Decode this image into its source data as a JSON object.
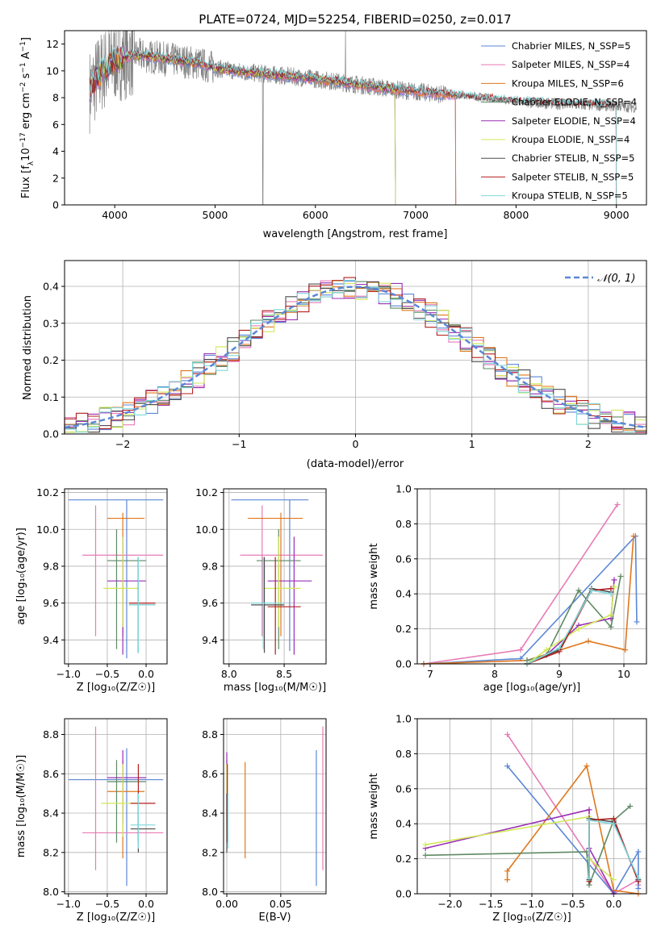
{
  "colors": {
    "Chabrier MILES": "#5b87d6",
    "Salpeter MILES": "#e87bb6",
    "Kroupa MILES": "#e0771d",
    "Chabrier ELODIE": "#5f8a64",
    "Salpeter ELODIE": "#9b2fb5",
    "Kroupa ELODIE": "#d2e85a",
    "Chabrier STELIB": "#4d4d4d",
    "Salpeter STELIB": "#b41f1f",
    "Kroupa STELIB": "#7fd8dc",
    "data": "#808080"
  },
  "chart_data": [
    {
      "id": "spectrum",
      "type": "line",
      "title": "PLATE=0724, MJD=52254, FIBERID=0250, z=0.017",
      "xlabel": "wavelength [Angstrom, rest frame]",
      "ylabel": "Flux [f_λ10^{-17} erg cm^{-2} s^{-1} A^{-1}]",
      "xlim": [
        3500,
        9300
      ],
      "ylim": [
        0,
        13
      ],
      "xticks": [
        "4000",
        "5000",
        "6000",
        "7000",
        "8000",
        "9000"
      ],
      "yticks": [
        "0",
        "2",
        "4",
        "6",
        "8",
        "10",
        "12"
      ],
      "legend": [
        {
          "name": "Chabrier MILES",
          "nssp": "N_SSP=5"
        },
        {
          "name": "Salpeter MILES",
          "nssp": "N_SSP=4"
        },
        {
          "name": "Kroupa MILES",
          "nssp": "N_SSP=6"
        },
        {
          "name": "Chabrier ELODIE",
          "nssp": "N_SSP=4"
        },
        {
          "name": "Salpeter ELODIE",
          "nssp": "N_SSP=4"
        },
        {
          "name": "Kroupa ELODIE",
          "nssp": "N_SSP=4"
        },
        {
          "name": "Chabrier STELIB",
          "nssp": "N_SSP=5"
        },
        {
          "name": "Salpeter STELIB",
          "nssp": "N_SSP=5"
        },
        {
          "name": "Kroupa STELIB",
          "nssp": "N_SSP=5"
        }
      ],
      "legend_position": "upper right",
      "continuum": [
        [
          3750,
          8.5
        ],
        [
          3850,
          9.8
        ],
        [
          4000,
          10.8
        ],
        [
          4200,
          11.2
        ],
        [
          4500,
          10.9
        ],
        [
          4800,
          10.6
        ],
        [
          5000,
          10.2
        ],
        [
          5300,
          9.9
        ],
        [
          5600,
          9.7
        ],
        [
          6000,
          9.4
        ],
        [
          6400,
          9.0
        ],
        [
          6800,
          8.6
        ],
        [
          7200,
          8.3
        ],
        [
          7600,
          8.0
        ],
        [
          8000,
          7.7
        ],
        [
          8500,
          7.5
        ],
        [
          9000,
          7.4
        ],
        [
          9200,
          7.3
        ]
      ],
      "data_range": [
        3750,
        9200
      ],
      "model_ranges": {
        "Chabrier MILES": [
          3750,
          7400
        ],
        "Salpeter MILES": [
          3750,
          7400
        ],
        "Kroupa MILES": [
          3750,
          7400
        ],
        "Chabrier ELODIE": [
          3750,
          6800
        ],
        "Salpeter ELODIE": [
          3750,
          6800
        ],
        "Kroupa ELODIE": [
          3750,
          6800
        ],
        "Chabrier STELIB": [
          3750,
          9000
        ],
        "Salpeter STELIB": [
          3750,
          9000
        ],
        "Kroupa STELIB": [
          3750,
          9000
        ]
      }
    },
    {
      "id": "residual-histogram",
      "type": "bar",
      "xlabel": "(data-model)/error",
      "ylabel": "Normed distribution",
      "xlim": [
        -2.5,
        2.5
      ],
      "ylim": [
        0,
        0.47
      ],
      "xticks": [
        "−2",
        "−1",
        "0",
        "1",
        "2"
      ],
      "yticks": [
        "0.0",
        "0.1",
        "0.2",
        "0.3",
        "0.4"
      ],
      "legend": "𝒩(0, 1)",
      "legend_position": "upper right",
      "bin_width": 0.1,
      "bin_start": -2.5,
      "series_models": [
        "Chabrier MILES",
        "Salpeter MILES",
        "Kroupa MILES",
        "Chabrier ELODIE",
        "Salpeter ELODIE",
        "Kroupa ELODIE",
        "Chabrier STELIB",
        "Salpeter STELIB",
        "Kroupa STELIB"
      ]
    },
    {
      "id": "age-vs-Z",
      "type": "scatter",
      "xlabel": "Z [log₁₀(Z/Z☉)]",
      "ylabel": "age  [log₁₀(age/yr)]",
      "xlim": [
        -1.05,
        0.27
      ],
      "ylim": [
        9.27,
        10.22
      ],
      "xticks": [
        "−1.0",
        "−0.5",
        "0.0"
      ],
      "yticks": [
        "9.4",
        "9.6",
        "9.8",
        "10.0",
        "10.2"
      ],
      "points": [
        {
          "m": "Chabrier MILES",
          "x": [
            -1.0,
            0.22
          ],
          "xc": -0.25,
          "y": [
            9.3,
            10.16
          ],
          "yc": 10.16
        },
        {
          "m": "Salpeter MILES",
          "x": [
            -0.82,
            0.22
          ],
          "xc": -0.65,
          "y": [
            9.42,
            10.13
          ],
          "yc": 9.86
        },
        {
          "m": "Kroupa MILES",
          "x": [
            -0.5,
            -0.02
          ],
          "xc": -0.3,
          "y": [
            9.42,
            10.09
          ],
          "yc": 10.06
        },
        {
          "m": "Chabrier ELODIE",
          "x": [
            -0.5,
            0.0
          ],
          "xc": -0.38,
          "y": [
            9.35,
            10.0
          ],
          "yc": 9.83
        },
        {
          "m": "Salpeter ELODIE",
          "x": [
            -0.5,
            -0.0
          ],
          "xc": -0.3,
          "y": [
            9.32,
            9.96
          ],
          "yc": 9.72
        },
        {
          "m": "Kroupa ELODIE",
          "x": [
            -0.55,
            -0.1
          ],
          "xc": -0.3,
          "y": [
            9.47,
            9.96
          ],
          "yc": 9.68
        },
        {
          "m": "Chabrier STELIB",
          "x": [
            -0.22,
            0.12
          ],
          "xc": -0.1,
          "y": [
            9.33,
            9.85
          ],
          "yc": 9.59
        },
        {
          "m": "Salpeter STELIB",
          "x": [
            -0.22,
            0.12
          ],
          "xc": -0.1,
          "y": [
            9.33,
            9.85
          ],
          "yc": 9.6
        },
        {
          "m": "Kroupa STELIB",
          "x": [
            -0.22,
            0.12
          ],
          "xc": -0.1,
          "y": [
            9.33,
            9.85
          ],
          "yc": 9.59
        }
      ]
    },
    {
      "id": "age-vs-mass",
      "type": "scatter",
      "xlabel": "mass [log₁₀(M/M☉)]",
      "ylabel": "",
      "xlim": [
        7.95,
        8.88
      ],
      "ylim": [
        9.27,
        10.22
      ],
      "xticks": [
        "8.0",
        "8.5"
      ],
      "yticks": [
        "9.4",
        "9.6",
        "9.8",
        "10.0",
        "10.2"
      ],
      "points": [
        {
          "m": "Chabrier MILES",
          "x": [
            8.02,
            8.72
          ],
          "xc": 8.55,
          "y": [
            9.34,
            10.16
          ],
          "yc": 10.16
        },
        {
          "m": "Salpeter MILES",
          "x": [
            8.1,
            8.85
          ],
          "xc": 8.3,
          "y": [
            9.42,
            10.13
          ],
          "yc": 9.86
        },
        {
          "m": "Kroupa MILES",
          "x": [
            8.17,
            8.67
          ],
          "xc": 8.47,
          "y": [
            9.42,
            10.09
          ],
          "yc": 10.06
        },
        {
          "m": "Chabrier ELODIE",
          "x": [
            8.25,
            8.65
          ],
          "xc": 8.45,
          "y": [
            9.35,
            10.0
          ],
          "yc": 9.83
        },
        {
          "m": "Salpeter ELODIE",
          "x": [
            8.35,
            8.75
          ],
          "xc": 8.59,
          "y": [
            9.32,
            9.96
          ],
          "yc": 9.72
        },
        {
          "m": "Kroupa ELODIE",
          "x": [
            8.3,
            8.65
          ],
          "xc": 8.45,
          "y": [
            9.47,
            9.96
          ],
          "yc": 9.68
        },
        {
          "m": "Chabrier STELIB",
          "x": [
            8.2,
            8.5
          ],
          "xc": 8.32,
          "y": [
            9.33,
            9.85
          ],
          "yc": 9.59
        },
        {
          "m": "Salpeter STELIB",
          "x": [
            8.35,
            8.65
          ],
          "xc": 8.42,
          "y": [
            9.32,
            9.85
          ],
          "yc": 9.58
        },
        {
          "m": "Kroupa STELIB",
          "x": [
            8.2,
            8.5
          ],
          "xc": 8.31,
          "y": [
            9.35,
            9.85
          ],
          "yc": 9.6
        }
      ]
    },
    {
      "id": "massweight-vs-age",
      "type": "line",
      "xlabel": "age  [log₁₀(age/yr)]",
      "ylabel": "mass weight",
      "xlim": [
        6.8,
        10.35
      ],
      "ylim": [
        0,
        1
      ],
      "xticks": [
        "7",
        "8",
        "9",
        "10"
      ],
      "yticks": [
        "0.0",
        "0.2",
        "0.4",
        "0.6",
        "0.8",
        "1.0"
      ],
      "series": [
        {
          "m": "Salpeter MILES",
          "x": [
            6.9,
            8.4,
            9.9
          ],
          "y": [
            0.0,
            0.08,
            0.91
          ]
        },
        {
          "m": "Chabrier MILES",
          "x": [
            6.9,
            8.4,
            10.18,
            10.2
          ],
          "y": [
            0.0,
            0.03,
            0.73,
            0.24
          ]
        },
        {
          "m": "Kroupa MILES",
          "x": [
            6.9,
            8.5,
            9.45,
            10.02,
            10.15
          ],
          "y": [
            0.0,
            0.02,
            0.13,
            0.08,
            0.73
          ]
        },
        {
          "m": "Chabrier ELODIE",
          "x": [
            8.5,
            8.8,
            9.3,
            9.8,
            9.95
          ],
          "y": [
            0.02,
            0.05,
            0.42,
            0.21,
            0.5
          ]
        },
        {
          "m": "Salpeter ELODIE",
          "x": [
            8.5,
            8.8,
            9.3,
            9.8,
            9.85
          ],
          "y": [
            0.0,
            0.05,
            0.22,
            0.26,
            0.48
          ]
        },
        {
          "m": "Kroupa ELODIE",
          "x": [
            8.5,
            8.8,
            9.3,
            9.8,
            9.85
          ],
          "y": [
            0.0,
            0.08,
            0.2,
            0.28,
            0.44
          ]
        },
        {
          "m": "Chabrier STELIB",
          "x": [
            8.5,
            9.0,
            9.5,
            9.8
          ],
          "y": [
            0.0,
            0.08,
            0.43,
            0.41
          ]
        },
        {
          "m": "Salpeter STELIB",
          "x": [
            8.5,
            9.0,
            9.5,
            9.8
          ],
          "y": [
            0.0,
            0.07,
            0.42,
            0.43
          ]
        },
        {
          "m": "Kroupa STELIB",
          "x": [
            8.5,
            9.0,
            9.5,
            9.8
          ],
          "y": [
            0.0,
            0.09,
            0.42,
            0.4
          ]
        }
      ]
    },
    {
      "id": "mass-vs-Z",
      "type": "scatter",
      "xlabel": "Z [log₁₀(Z/Z☉)]",
      "ylabel": "mass [log₁₀(M/M☉)]",
      "xlim": [
        -1.05,
        0.27
      ],
      "ylim": [
        7.99,
        8.88
      ],
      "xticks": [
        "−1.0",
        "−0.5",
        "0.0"
      ],
      "yticks": [
        "8.0",
        "8.2",
        "8.4",
        "8.6",
        "8.8"
      ],
      "points": [
        {
          "m": "Chabrier MILES",
          "x": [
            -1.0,
            0.22
          ],
          "xc": -0.25,
          "y": [
            8.03,
            8.73
          ],
          "yc": 8.57
        },
        {
          "m": "Salpeter MILES",
          "x": [
            -0.82,
            0.22
          ],
          "xc": -0.65,
          "y": [
            8.11,
            8.84
          ],
          "yc": 8.3
        },
        {
          "m": "Kroupa MILES",
          "x": [
            -0.5,
            -0.02
          ],
          "xc": -0.3,
          "y": [
            8.17,
            8.67
          ],
          "yc": 8.51
        },
        {
          "m": "Chabrier ELODIE",
          "x": [
            -0.5,
            0.0
          ],
          "xc": -0.38,
          "y": [
            8.25,
            8.67
          ],
          "yc": 8.56
        },
        {
          "m": "Salpeter ELODIE",
          "x": [
            -0.5,
            -0.0
          ],
          "xc": -0.3,
          "y": [
            8.35,
            8.72
          ],
          "yc": 8.58
        },
        {
          "m": "Kroupa ELODIE",
          "x": [
            -0.58,
            -0.1
          ],
          "xc": -0.3,
          "y": [
            8.28,
            8.65
          ],
          "yc": 8.45
        },
        {
          "m": "Chabrier STELIB",
          "x": [
            -0.2,
            0.12
          ],
          "xc": -0.1,
          "y": [
            8.2,
            8.5
          ],
          "yc": 8.32
        },
        {
          "m": "Salpeter STELIB",
          "x": [
            -0.2,
            0.12
          ],
          "xc": -0.1,
          "y": [
            8.25,
            8.65
          ],
          "yc": 8.45
        },
        {
          "m": "Kroupa STELIB",
          "x": [
            -0.2,
            0.12
          ],
          "xc": -0.1,
          "y": [
            8.22,
            8.5
          ],
          "yc": 8.34
        }
      ]
    },
    {
      "id": "mass-vs-ebv",
      "type": "scatter",
      "xlabel": "E(B-V)",
      "ylabel": "",
      "xlim": [
        -0.003,
        0.092
      ],
      "ylim": [
        7.99,
        8.88
      ],
      "xticks": [
        "0.00",
        "0.05"
      ],
      "yticks": [
        "8.0",
        "8.2",
        "8.4",
        "8.6",
        "8.8"
      ],
      "points": [
        {
          "m": "Chabrier MILES",
          "x": [
            0.083,
            0.083
          ],
          "y": [
            8.03,
            8.72
          ]
        },
        {
          "m": "Salpeter MILES",
          "x": [
            0.089,
            0.089
          ],
          "y": [
            8.11,
            8.84
          ]
        },
        {
          "m": "Kroupa MILES",
          "x": [
            0.017,
            0.017
          ],
          "y": [
            8.17,
            8.66
          ]
        },
        {
          "m": "Chabrier ELODIE",
          "x": [
            0.0,
            0.0
          ],
          "y": [
            8.25,
            8.67
          ]
        },
        {
          "m": "Salpeter ELODIE",
          "x": [
            0.0,
            0.0
          ],
          "y": [
            8.35,
            8.71
          ]
        },
        {
          "m": "Kroupa ELODIE",
          "x": [
            0.0,
            0.0
          ],
          "y": [
            8.28,
            8.65
          ]
        },
        {
          "m": "Chabrier STELIB",
          "x": [
            0.0,
            0.0
          ],
          "y": [
            8.2,
            8.5
          ]
        },
        {
          "m": "Salpeter STELIB",
          "x": [
            0.0005,
            0.0005
          ],
          "y": [
            8.25,
            8.65
          ]
        },
        {
          "m": "Kroupa STELIB",
          "x": [
            0.001,
            0.001
          ],
          "y": [
            8.22,
            8.5
          ]
        }
      ]
    },
    {
      "id": "massweight-vs-Z",
      "type": "line",
      "xlabel": "Z [log₁₀(Z/Z☉)]",
      "ylabel": "mass weight",
      "xlim": [
        -2.4,
        0.4
      ],
      "ylim": [
        0,
        1
      ],
      "xticks": [
        "−2.0",
        "−1.5",
        "−1.0",
        "−0.5",
        "0.0"
      ],
      "yticks": [
        "0.0",
        "0.2",
        "0.4",
        "0.6",
        "0.8",
        "1.0"
      ],
      "series": [
        {
          "m": "Salpeter MILES",
          "x": [
            -1.3,
            0.0,
            0.3,
            0.3
          ],
          "y": [
            0.91,
            0.0,
            0.08,
            0.05
          ]
        },
        {
          "m": "Chabrier MILES",
          "x": [
            -1.3,
            0.0,
            0.3,
            0.3
          ],
          "y": [
            0.73,
            0.0,
            0.24,
            0.03
          ]
        },
        {
          "m": "Kroupa MILES",
          "x": [
            -1.3,
            -1.3,
            -0.33,
            0.0,
            0.3
          ],
          "y": [
            0.08,
            0.13,
            0.73,
            0.02,
            0.0
          ]
        },
        {
          "m": "Chabrier ELODIE",
          "x": [
            -2.3,
            -0.33,
            -0.3,
            0.0,
            0.2
          ],
          "y": [
            0.22,
            0.24,
            0.05,
            0.42,
            0.5
          ]
        },
        {
          "m": "Salpeter ELODIE",
          "x": [
            -2.3,
            -0.3,
            -0.3,
            0.0
          ],
          "y": [
            0.26,
            0.48,
            0.26,
            0.0
          ]
        },
        {
          "m": "Kroupa ELODIE",
          "x": [
            -2.3,
            -0.3,
            -0.3,
            0.0
          ],
          "y": [
            0.28,
            0.44,
            0.2,
            0.08
          ]
        },
        {
          "m": "Chabrier STELIB",
          "x": [
            -0.3,
            -0.3,
            0.0,
            0.3
          ],
          "y": [
            0.08,
            0.43,
            0.41,
            0.08
          ]
        },
        {
          "m": "Salpeter STELIB",
          "x": [
            -0.3,
            -0.3,
            0.0,
            0.3
          ],
          "y": [
            0.07,
            0.42,
            0.43,
            0.07
          ]
        },
        {
          "m": "Kroupa STELIB",
          "x": [
            -0.3,
            -0.3,
            0.0,
            0.3
          ],
          "y": [
            0.09,
            0.42,
            0.4,
            0.09
          ]
        }
      ]
    }
  ]
}
